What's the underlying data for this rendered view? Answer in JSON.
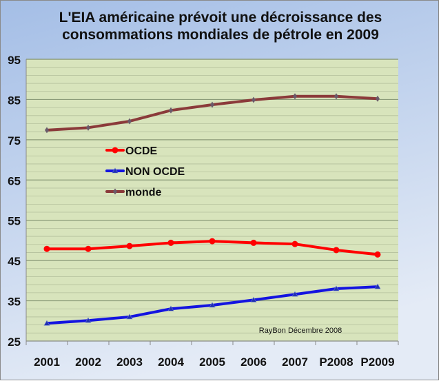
{
  "chart_data": {
    "type": "line",
    "title": [
      "L'EIA américaine prévoit une décroissance des",
      "consommations mondiales de pétrole en 2009"
    ],
    "xlabel": "",
    "ylabel": "",
    "ylim": [
      25,
      95
    ],
    "yticks": [
      25,
      35,
      45,
      55,
      65,
      75,
      85,
      95
    ],
    "minor_grid_step": 2,
    "grid": true,
    "legend_position": "inside-left",
    "categories": [
      "2001",
      "2002",
      "2003",
      "2004",
      "2005",
      "2006",
      "2007",
      "P2008",
      "P2009"
    ],
    "series": [
      {
        "name": "OCDE",
        "color": "#ff0000",
        "marker": "circle",
        "values": [
          47.9,
          47.9,
          48.6,
          49.4,
          49.8,
          49.4,
          49.1,
          47.6,
          46.5
        ]
      },
      {
        "name": "NON OCDE",
        "color": "#1414e0",
        "marker": "triangle",
        "values": [
          29.4,
          30.1,
          31.0,
          33.0,
          33.9,
          35.2,
          36.6,
          38.0,
          38.5
        ]
      },
      {
        "name": "monde",
        "color": "#8b3a3a",
        "marker": "diamond",
        "values": [
          77.4,
          78.0,
          79.6,
          82.3,
          83.7,
          84.9,
          85.8,
          85.8,
          85.2
        ]
      }
    ],
    "annotation": "RayBon Décembre 2008"
  }
}
